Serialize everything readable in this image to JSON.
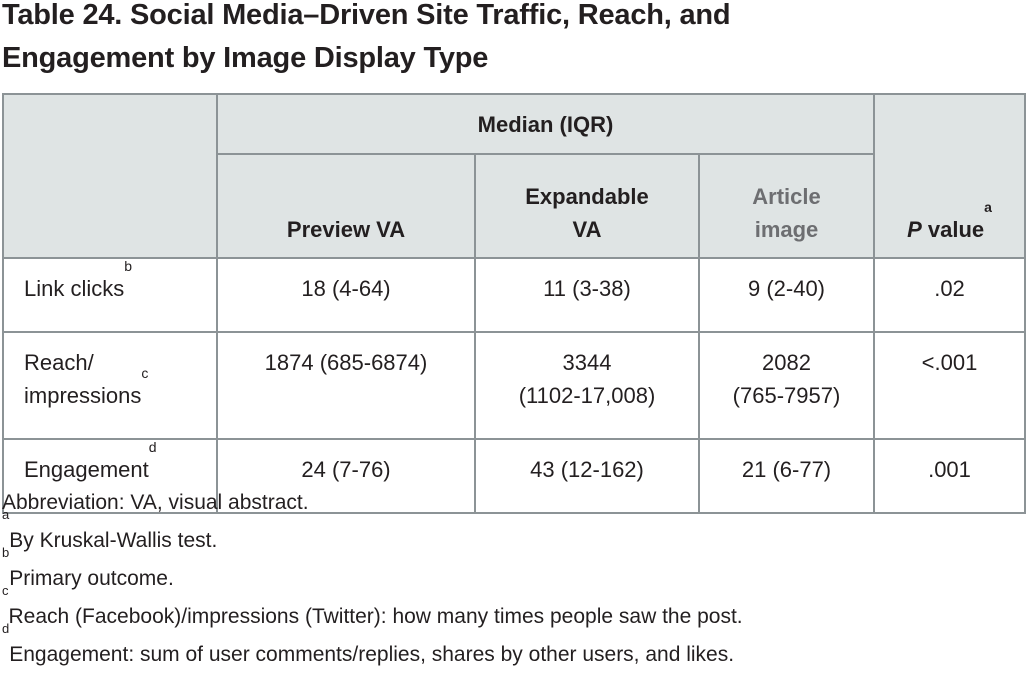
{
  "title": {
    "line1": "Table 24. Social Media–Driven Site Traffic, Reach, and",
    "line2": "Engagement by Image Display Type"
  },
  "table": {
    "group_header": "Median (IQR)",
    "columns": {
      "preview": "Preview VA",
      "expandable_line1": "Expandable",
      "expandable_line2": "VA",
      "article_line1": "Article",
      "article_line2": "image",
      "pvalue_italic": "P",
      "pvalue_rest": " value",
      "pvalue_sup": "a"
    },
    "rows": [
      {
        "label": "Link clicks",
        "label_sup": "b",
        "preview": "18 (4-64)",
        "expandable": "11 (3-38)",
        "article": "9 (2-40)",
        "p": ".02"
      },
      {
        "label_line1": "Reach/",
        "label_line2": "impressions",
        "label_sup": "c",
        "preview": "1874 (685-6874)",
        "expandable_line1": "3344",
        "expandable_line2": "(1102-17,008)",
        "article_line1": "2082",
        "article_line2": "(765-7957)",
        "p": "<.001"
      },
      {
        "label": "Engagement",
        "label_sup": "d",
        "preview": "24 (7-76)",
        "expandable": "43 (12-162)",
        "article": "21 (6-77)",
        "p": ".001"
      }
    ]
  },
  "footnotes": [
    {
      "sup": "",
      "text": "Abbreviation: VA, visual abstract."
    },
    {
      "sup": "a",
      "text": "By Kruskal-Wallis test."
    },
    {
      "sup": "b",
      "text": "Primary outcome."
    },
    {
      "sup": "c",
      "text": "Reach (Facebook)/impressions (Twitter): how many times people saw the post."
    },
    {
      "sup": "d",
      "text": "Engagement: sum of user comments/replies, shares by other users, and likes."
    }
  ]
}
